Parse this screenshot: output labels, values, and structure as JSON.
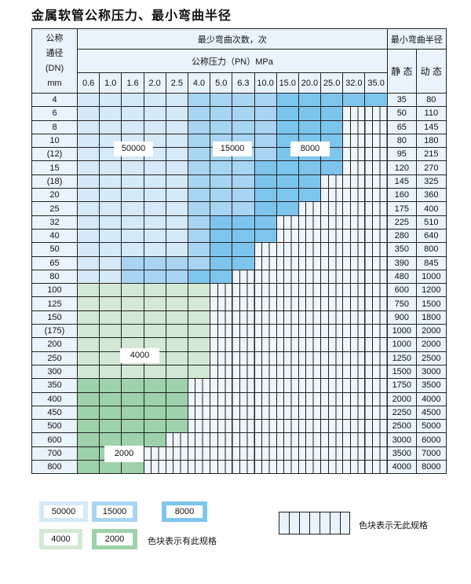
{
  "title": "金属软管公称压力、最小弯曲半径",
  "header": {
    "dn_label": [
      "公称",
      "通径",
      "(DN)",
      "mm"
    ],
    "cycles_label": "最少弯曲次数，次",
    "pressure_label": "公称压力（PN）MPa",
    "radius_label": "最小弯曲半径",
    "static_label": "静 态",
    "dynamic_label": "动 态",
    "pressures": [
      "0.6",
      "1.0",
      "1.6",
      "2.0",
      "2.5",
      "4.0",
      "5.0",
      "6.3",
      "10.0",
      "15.0",
      "20.0",
      "25.0",
      "32.0",
      "35.0"
    ]
  },
  "colors": {
    "50000": "#d4eaf8",
    "15000": "#a8d5f2",
    "8000": "#7ec5ee",
    "4000": "#d3e9d5",
    "2000": "#9ed2aa",
    "none": "#eef5fb"
  },
  "rows": [
    {
      "dn": "4",
      "runs": [
        [
          "50000",
          5
        ],
        [
          "15000",
          4
        ],
        [
          "8000",
          5
        ]
      ],
      "static": "35",
      "dynamic": "80"
    },
    {
      "dn": "6",
      "runs": [
        [
          "50000",
          5
        ],
        [
          "15000",
          4
        ],
        [
          "8000",
          3
        ]
      ],
      "static": "50",
      "dynamic": "110"
    },
    {
      "dn": "8",
      "runs": [
        [
          "50000",
          5
        ],
        [
          "15000",
          4
        ],
        [
          "8000",
          3
        ]
      ],
      "static": "65",
      "dynamic": "145"
    },
    {
      "dn": "10",
      "runs": [
        [
          "50000",
          5
        ],
        [
          "15000",
          4
        ],
        [
          "8000",
          3
        ]
      ],
      "static": "80",
      "dynamic": "180"
    },
    {
      "dn": "(12)",
      "runs": [
        [
          "50000",
          5
        ],
        [
          "15000",
          4
        ],
        [
          "8000",
          3
        ]
      ],
      "static": "95",
      "dynamic": "215"
    },
    {
      "dn": "15",
      "runs": [
        [
          "50000",
          5
        ],
        [
          "15000",
          3
        ],
        [
          "8000",
          4
        ]
      ],
      "static": "120",
      "dynamic": "270"
    },
    {
      "dn": "(18)",
      "runs": [
        [
          "50000",
          5
        ],
        [
          "15000",
          3
        ],
        [
          "8000",
          3
        ]
      ],
      "static": "145",
      "dynamic": "325"
    },
    {
      "dn": "20",
      "runs": [
        [
          "50000",
          5
        ],
        [
          "15000",
          3
        ],
        [
          "8000",
          3
        ]
      ],
      "static": "160",
      "dynamic": "360"
    },
    {
      "dn": "25",
      "runs": [
        [
          "50000",
          5
        ],
        [
          "15000",
          3
        ],
        [
          "8000",
          2
        ]
      ],
      "static": "175",
      "dynamic": "400"
    },
    {
      "dn": "32",
      "runs": [
        [
          "50000",
          5
        ],
        [
          "15000",
          1
        ],
        [
          "8000",
          3
        ]
      ],
      "static": "225",
      "dynamic": "510"
    },
    {
      "dn": "40",
      "runs": [
        [
          "50000",
          5
        ],
        [
          "15000",
          1
        ],
        [
          "8000",
          3
        ]
      ],
      "static": "280",
      "dynamic": "640"
    },
    {
      "dn": "50",
      "runs": [
        [
          "50000",
          5
        ],
        [
          "15000",
          1
        ],
        [
          "8000",
          2
        ]
      ],
      "static": "350",
      "dynamic": "800"
    },
    {
      "dn": "65",
      "runs": [
        [
          "50000",
          2
        ],
        [
          "15000",
          4
        ],
        [
          "8000",
          2
        ]
      ],
      "static": "390",
      "dynamic": "845"
    },
    {
      "dn": "80",
      "runs": [
        [
          "50000",
          2
        ],
        [
          "15000",
          3
        ],
        [
          "8000",
          2
        ]
      ],
      "static": "480",
      "dynamic": "1000"
    },
    {
      "dn": "100",
      "runs": [
        [
          "4000",
          6
        ]
      ],
      "static": "600",
      "dynamic": "1200"
    },
    {
      "dn": "125",
      "runs": [
        [
          "4000",
          6
        ]
      ],
      "static": "750",
      "dynamic": "1500"
    },
    {
      "dn": "150",
      "runs": [
        [
          "4000",
          6
        ]
      ],
      "static": "900",
      "dynamic": "1800"
    },
    {
      "dn": "(175)",
      "runs": [
        [
          "4000",
          6
        ]
      ],
      "static": "1000",
      "dynamic": "2000"
    },
    {
      "dn": "200",
      "runs": [
        [
          "4000",
          6
        ]
      ],
      "static": "1000",
      "dynamic": "2000"
    },
    {
      "dn": "250",
      "runs": [
        [
          "4000",
          6
        ]
      ],
      "static": "1250",
      "dynamic": "2500"
    },
    {
      "dn": "300",
      "runs": [
        [
          "4000",
          6
        ]
      ],
      "static": "1500",
      "dynamic": "3000"
    },
    {
      "dn": "350",
      "runs": [
        [
          "2000",
          5
        ]
      ],
      "static": "1750",
      "dynamic": "3500"
    },
    {
      "dn": "400",
      "runs": [
        [
          "2000",
          5
        ]
      ],
      "static": "2000",
      "dynamic": "4000"
    },
    {
      "dn": "450",
      "runs": [
        [
          "2000",
          5
        ]
      ],
      "static": "2250",
      "dynamic": "4500"
    },
    {
      "dn": "500",
      "runs": [
        [
          "2000",
          5
        ]
      ],
      "static": "2500",
      "dynamic": "5000"
    },
    {
      "dn": "600",
      "runs": [
        [
          "2000",
          4
        ]
      ],
      "static": "3000",
      "dynamic": "6000"
    },
    {
      "dn": "700",
      "runs": [
        [
          "2000",
          3
        ]
      ],
      "static": "3500",
      "dynamic": "7000"
    },
    {
      "dn": "800",
      "runs": [
        [
          "2000",
          3
        ]
      ],
      "static": "4000",
      "dynamic": "8000"
    }
  ],
  "region_labels": {
    "a": "50000",
    "b": "15000",
    "c": "8000",
    "d": "4000",
    "e": "2000"
  },
  "legend": {
    "items": [
      "50000",
      "15000",
      "8000",
      "4000",
      "2000"
    ],
    "available_text": "色块表示有此规格",
    "unavailable_text": "色块表示无此规格"
  }
}
